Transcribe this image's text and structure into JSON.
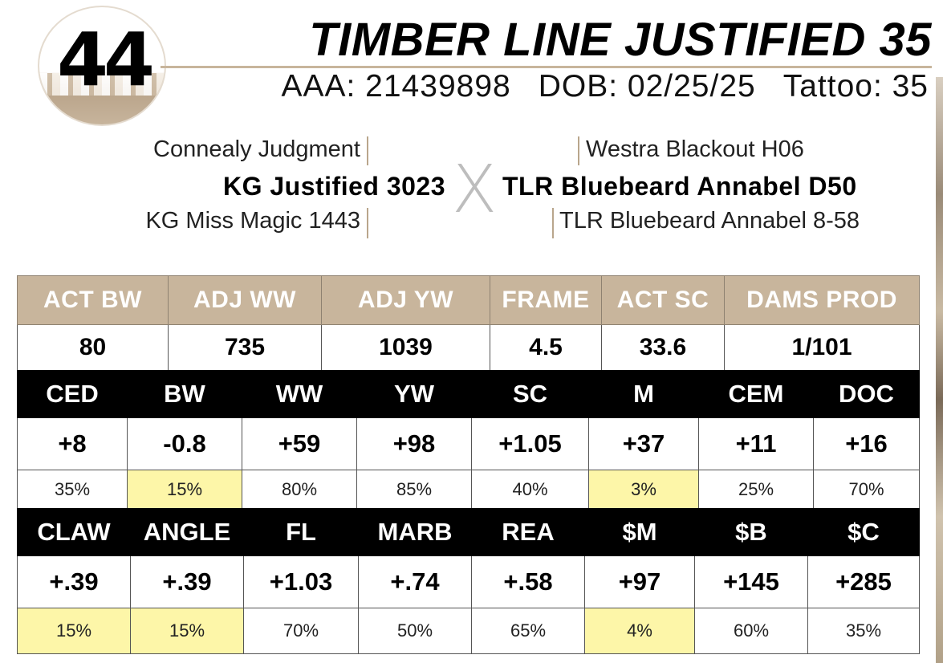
{
  "lot": "44",
  "animal_name": "TIMBER LINE JUSTIFIED 35",
  "registration": {
    "aaa": "AAA: 21439898",
    "dob": "DOB: 02/25/25",
    "tattoo": "Tattoo: 35"
  },
  "pedigree": {
    "sire_sire": "Connealy Judgment",
    "sire": "KG Justified 3023",
    "sire_dam": "KG Miss Magic 1443",
    "dam_sire": "Westra Blackout H06",
    "dam": "TLR Bluebeard Annabel D50",
    "dam_dam": "TLR Bluebeard Annabel 8-58",
    "cross_symbol": "X"
  },
  "performance": {
    "headers": [
      "ACT BW",
      "ADJ WW",
      "ADJ YW",
      "FRAME",
      "ACT SC",
      "DAMS PROD"
    ],
    "values": [
      "80",
      "735",
      "1039",
      "4.5",
      "33.6",
      "1/101"
    ]
  },
  "epd_block_1": {
    "headers": [
      "CED",
      "BW",
      "WW",
      "YW",
      "SC",
      "M",
      "CEM",
      "DOC"
    ],
    "epds": [
      "+8",
      "-0.8",
      "+59",
      "+98",
      "+1.05",
      "+37",
      "+11",
      "+16"
    ],
    "percentiles": [
      "35%",
      "15%",
      "80%",
      "85%",
      "40%",
      "3%",
      "25%",
      "70%"
    ],
    "highlighted": [
      false,
      true,
      false,
      false,
      false,
      true,
      false,
      false
    ]
  },
  "epd_block_2": {
    "headers": [
      "CLAW",
      "ANGLE",
      "FL",
      "MARB",
      "REA",
      "$M",
      "$B",
      "$C"
    ],
    "epds": [
      "+.39",
      "+.39",
      "+1.03",
      "+.74",
      "+.58",
      "+97",
      "+145",
      "+285"
    ],
    "percentiles": [
      "15%",
      "15%",
      "70%",
      "50%",
      "65%",
      "4%",
      "60%",
      "35%"
    ],
    "highlighted": [
      true,
      true,
      false,
      false,
      false,
      true,
      false,
      false
    ]
  },
  "colors": {
    "tan": "#c8b59c",
    "highlight": "#fdf6a8",
    "black": "#000000"
  }
}
